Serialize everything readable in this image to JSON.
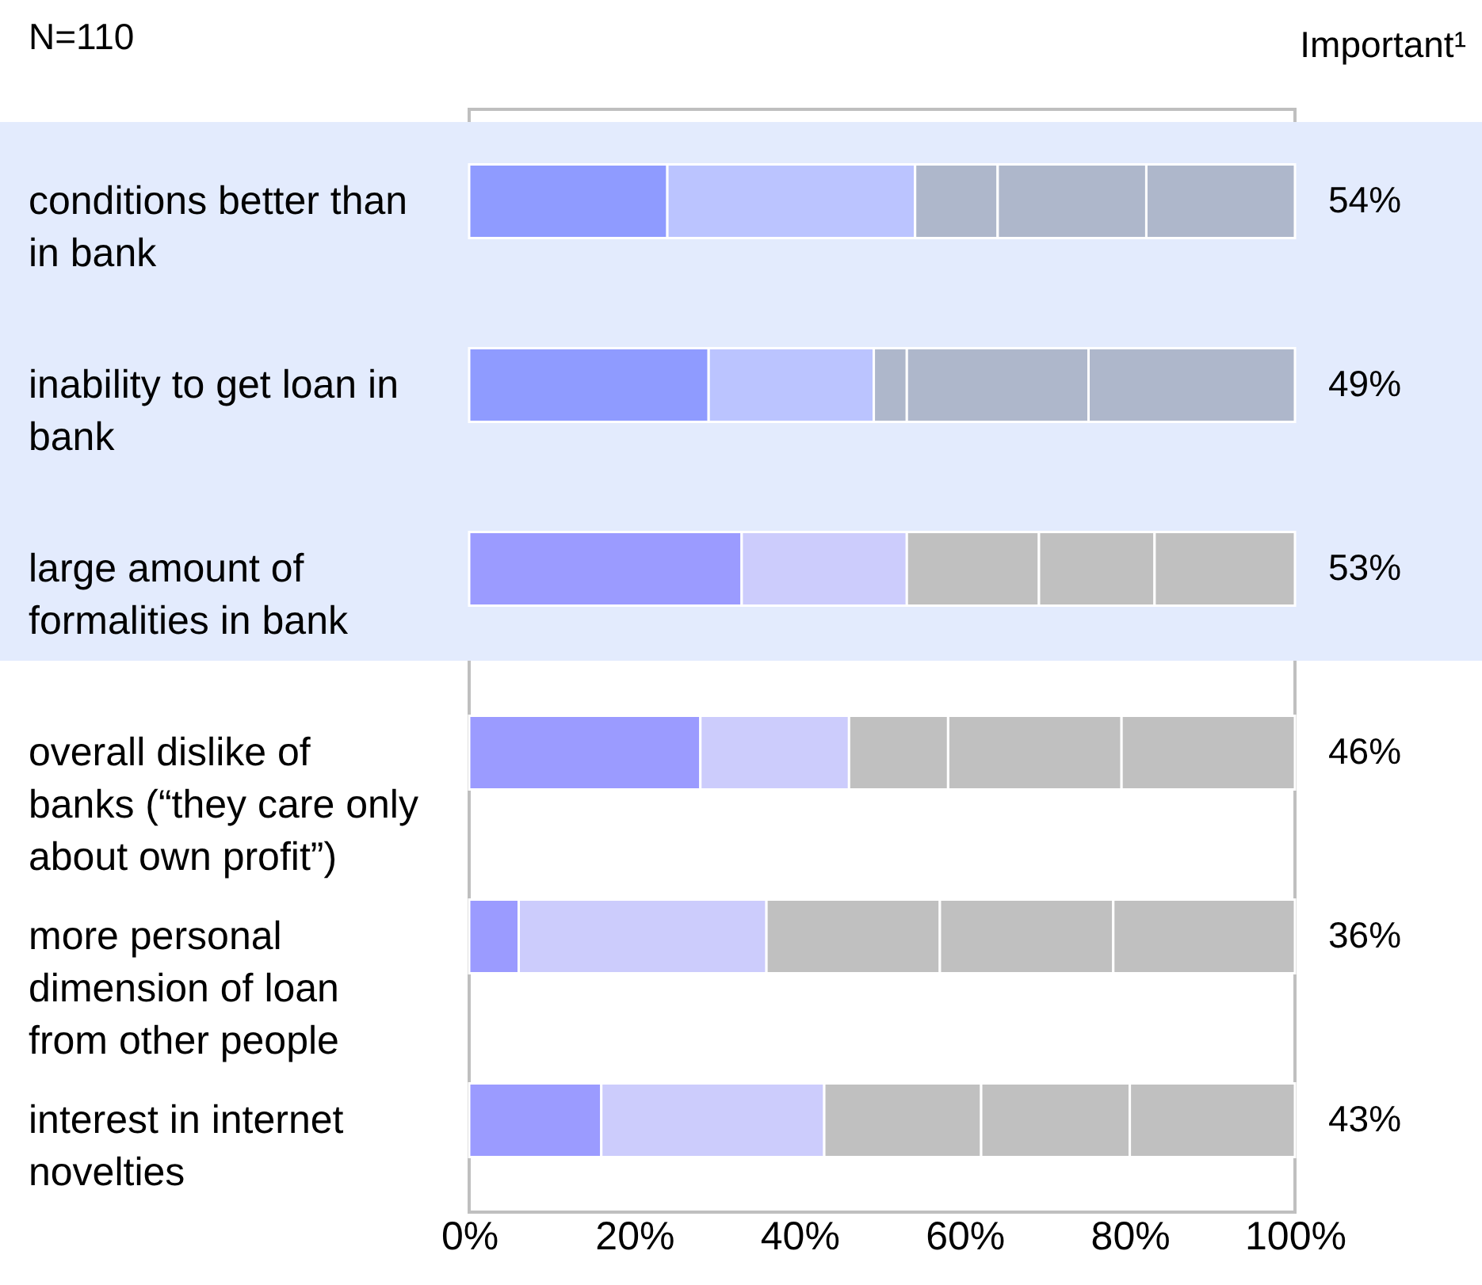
{
  "chart_data": {
    "type": "bar",
    "orientation": "horizontal",
    "stacked": true,
    "categories": [
      "conditions better than in bank",
      "inability to get loan in bank",
      "large amount of formalities in bank",
      "overall dislike of banks (“they care only about own profit”)",
      "more personal dimension of loan from other people",
      "interest in internet novelties"
    ],
    "series": [
      {
        "colors": [
          "#8f9bff",
          "#8f9bff",
          "#9b9bff",
          "#9b9bff",
          "#9b9bff",
          "#9b9bff"
        ],
        "values": [
          24,
          29,
          33,
          28,
          6,
          16
        ]
      },
      {
        "colors": [
          "#bbc4ff",
          "#bbc4ff",
          "#ccccfc",
          "#ccccfc",
          "#ccccfc",
          "#ccccfc"
        ],
        "values": [
          30,
          20,
          20,
          18,
          30,
          27
        ]
      },
      {
        "colors": [
          "#aeb7cb",
          "#aeb7cb",
          "#c0c0c0",
          "#c0c0c0",
          "#c0c0c0",
          "#c0c0c0"
        ],
        "values": [
          10,
          4,
          16,
          12,
          21,
          19
        ]
      },
      {
        "colors": [
          "#aeb7cb",
          "#aeb7cb",
          "#c0c0c0",
          "#c0c0c0",
          "#c0c0c0",
          "#c0c0c0"
        ],
        "values": [
          18,
          22,
          14,
          21,
          21,
          18
        ]
      },
      {
        "colors": [
          "#aeb7cb",
          "#aeb7cb",
          "#c0c0c0",
          "#c0c0c0",
          "#c0c0c0",
          "#c0c0c0"
        ],
        "values": [
          18,
          25,
          17,
          21,
          22,
          20
        ]
      }
    ],
    "xlim": [
      0,
      100
    ],
    "xticks": [
      {
        "value": 0,
        "label": "0%"
      },
      {
        "value": 20,
        "label": "20%"
      },
      {
        "value": 40,
        "label": "40%"
      },
      {
        "value": 60,
        "label": "60%"
      },
      {
        "value": 80,
        "label": "80%"
      },
      {
        "value": 100,
        "label": "100%"
      }
    ],
    "bands": [
      {
        "axis": "y",
        "from": "conditions better than in bank",
        "to": "large amount of formalities in bank",
        "color": "#e3ebfd"
      }
    ],
    "annotations": [
      "N=110",
      "Important¹",
      "54%",
      "49%",
      "53%",
      "46%",
      "36%",
      "43%"
    ],
    "grid": false
  }
}
